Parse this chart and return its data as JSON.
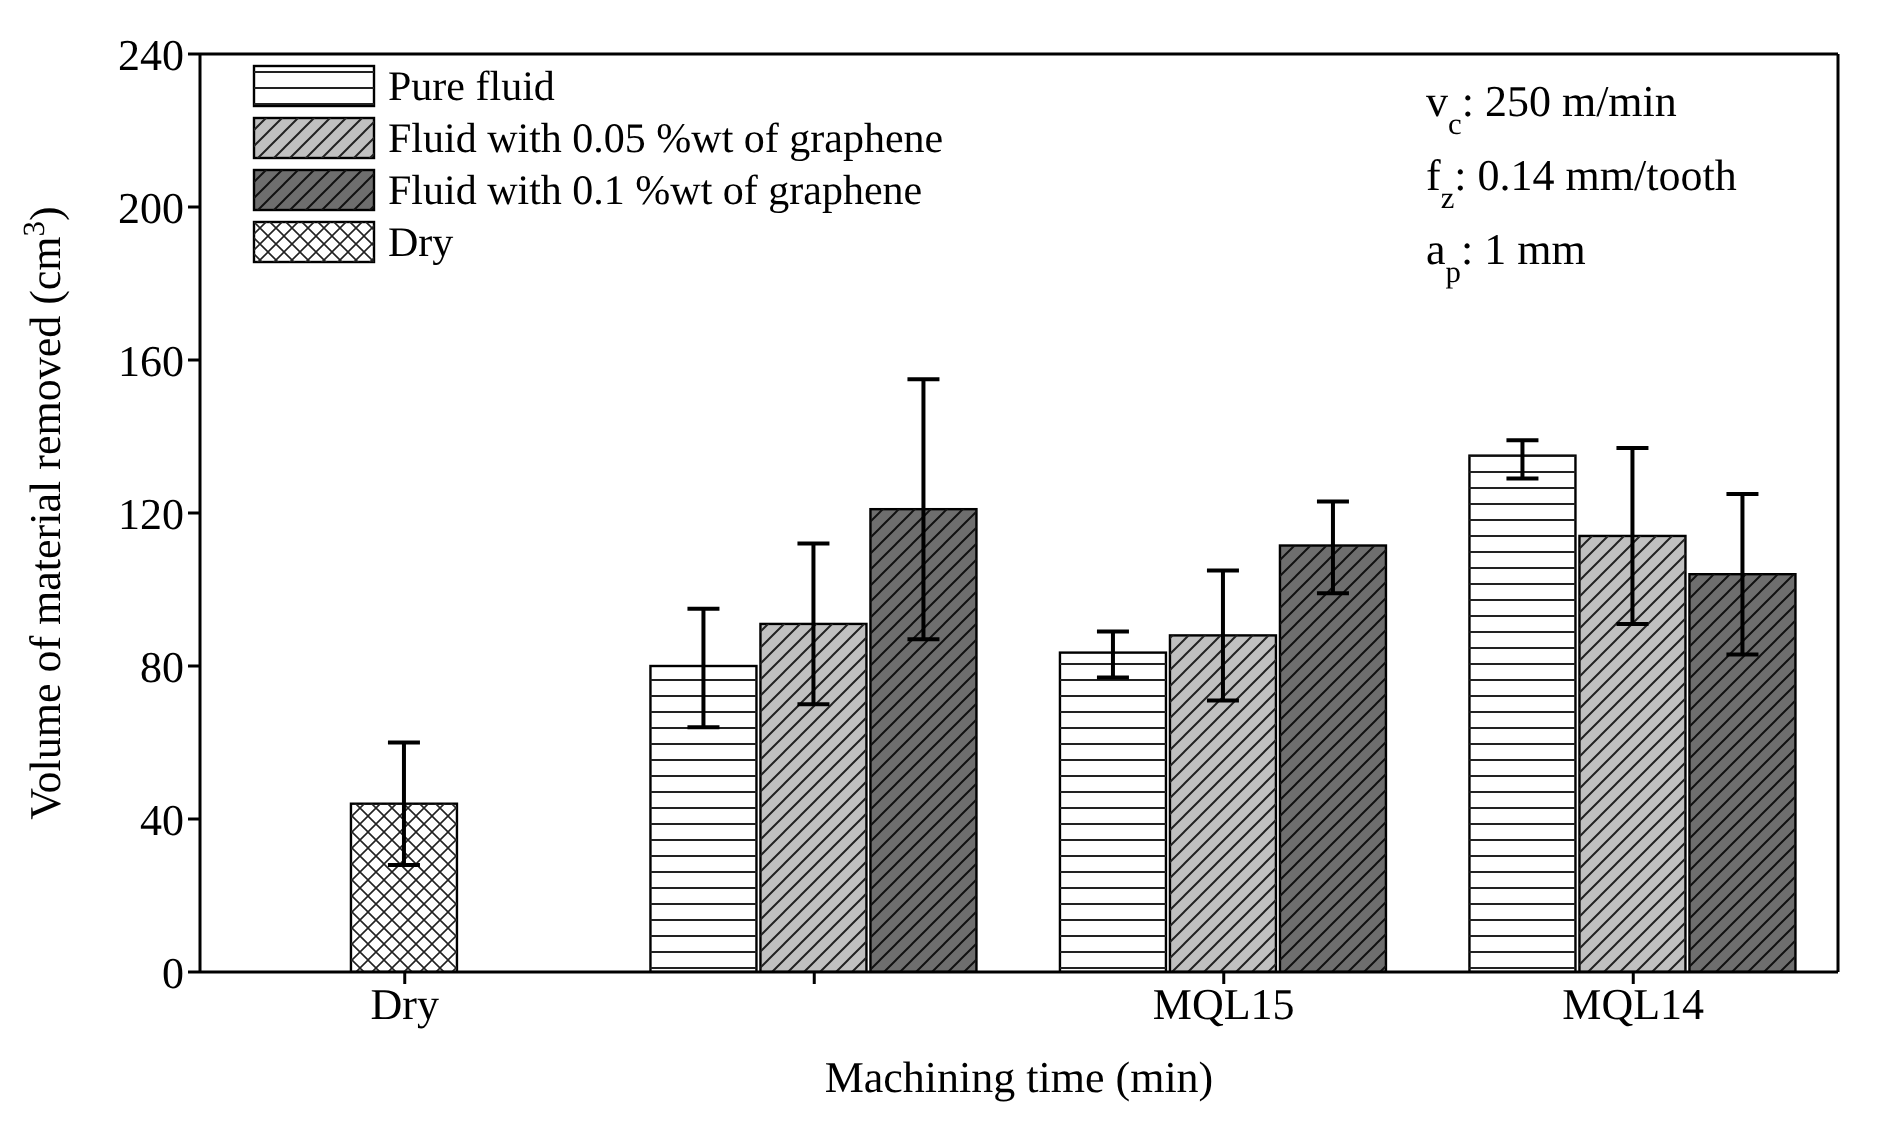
{
  "chart_data": {
    "type": "bar",
    "xlabel": "Machining time (min)",
    "ylabel": "Volume of material removed (cm$^{3}$)",
    "categories": [
      "Dry",
      null,
      "MQL15",
      "MQL14"
    ],
    "series": [
      {
        "name": "Pure fluid",
        "color": "#ffffff",
        "values": [
          null,
          80,
          83.5,
          135
        ],
        "errors": [
          null,
          [
            64,
            95
          ],
          [
            77,
            89
          ],
          [
            129,
            139
          ]
        ]
      },
      {
        "name": "Fluid with 0.05 %wt of graphene",
        "color": "#c0c0c0",
        "values": [
          null,
          91,
          88,
          114
        ],
        "errors": [
          null,
          [
            70,
            112
          ],
          [
            71,
            105
          ],
          [
            91,
            137
          ]
        ]
      },
      {
        "name": "Fluid with 0.1 %wt of graphene",
        "color": "#6e6e6e",
        "values": [
          null,
          121,
          111.5,
          104
        ],
        "errors": [
          null,
          [
            87,
            155
          ],
          [
            99,
            123
          ],
          [
            83,
            125
          ]
        ]
      },
      {
        "name": "Dry",
        "color": "#ffffff",
        "values": [
          44,
          null,
          null,
          null
        ],
        "errors": [
          [
            28,
            60
          ],
          null,
          null,
          null
        ]
      }
    ],
    "ylim": [
      0,
      240
    ],
    "yticks": [
      0,
      40,
      80,
      120,
      160,
      200,
      240
    ],
    "grid": false,
    "legend": "top left",
    "annotations": [
      "v$_{c}$: 250 m/min",
      "f$_{z}$: 0.14 mm/tooth",
      "a$_{p}$: 1 mm"
    ]
  }
}
